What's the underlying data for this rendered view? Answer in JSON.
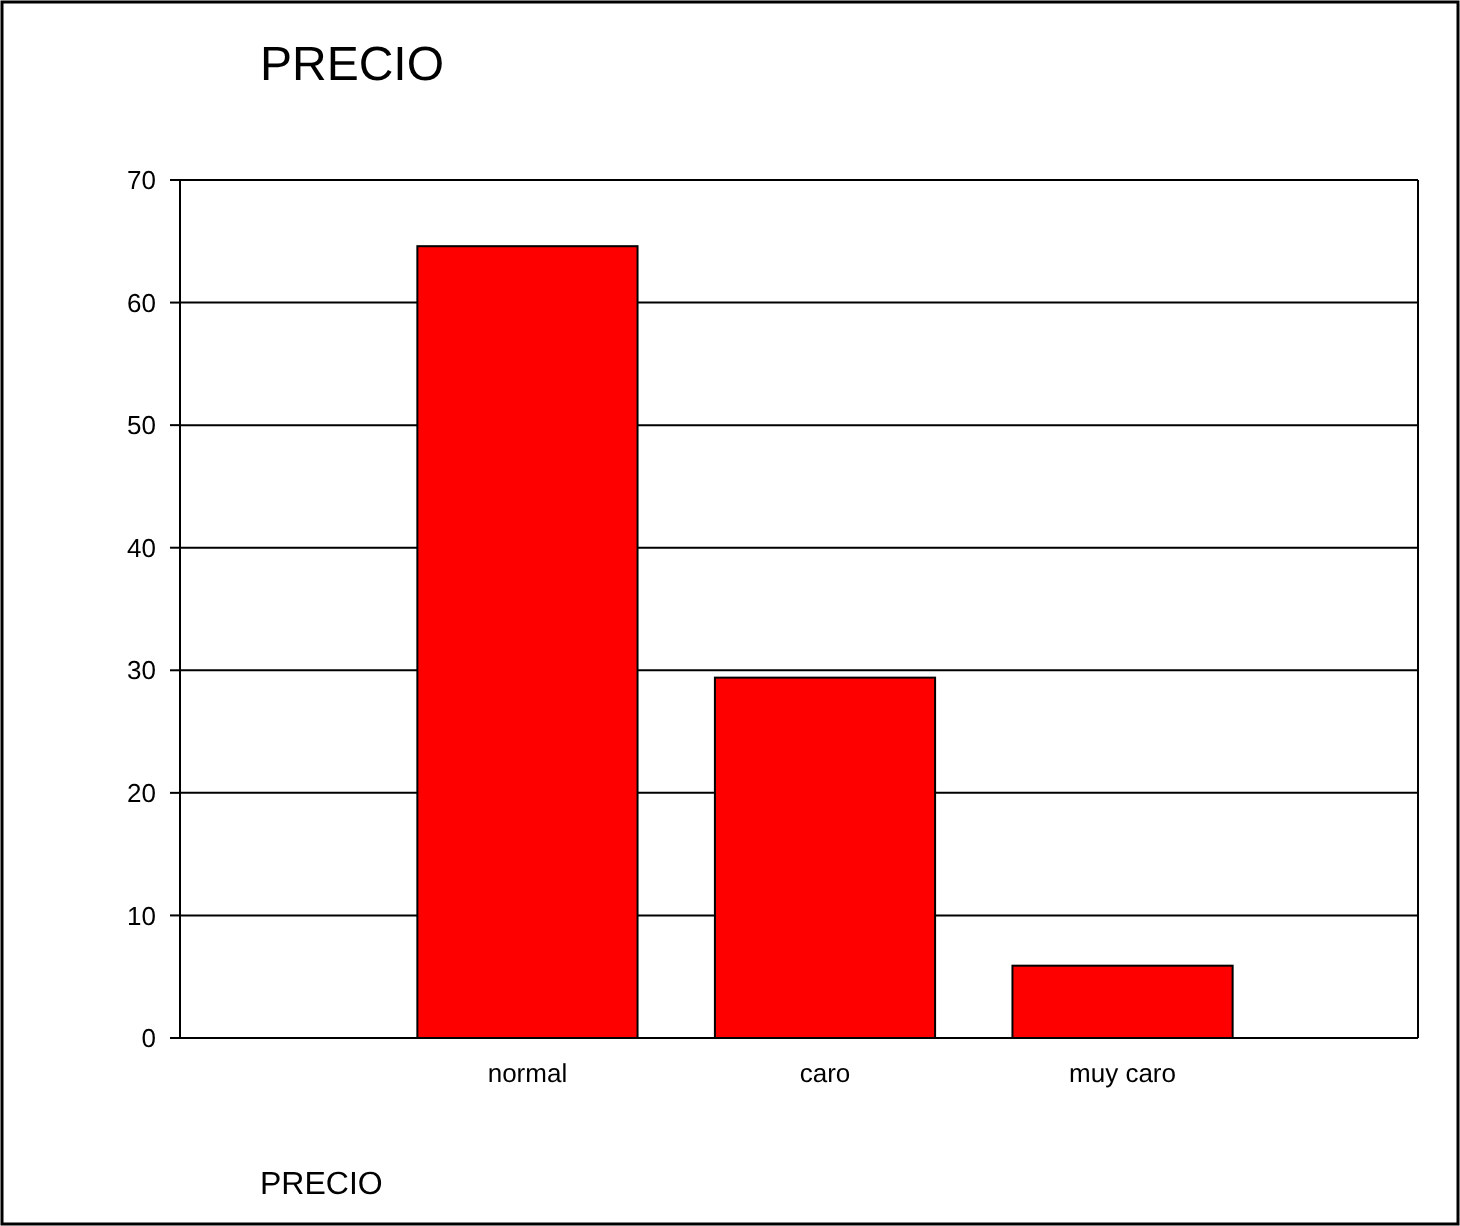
{
  "chart_data": {
    "type": "bar",
    "title": "PRECIO",
    "xlabel": "PRECIO",
    "categories": [
      "normal",
      "caro",
      "muy caro"
    ],
    "values": [
      64.6,
      29.4,
      5.9
    ],
    "color": "#ff0000",
    "ylim": [
      0,
      70
    ],
    "yticks": [
      0,
      10,
      20,
      30,
      40,
      50,
      60,
      70
    ],
    "grid": "y"
  }
}
